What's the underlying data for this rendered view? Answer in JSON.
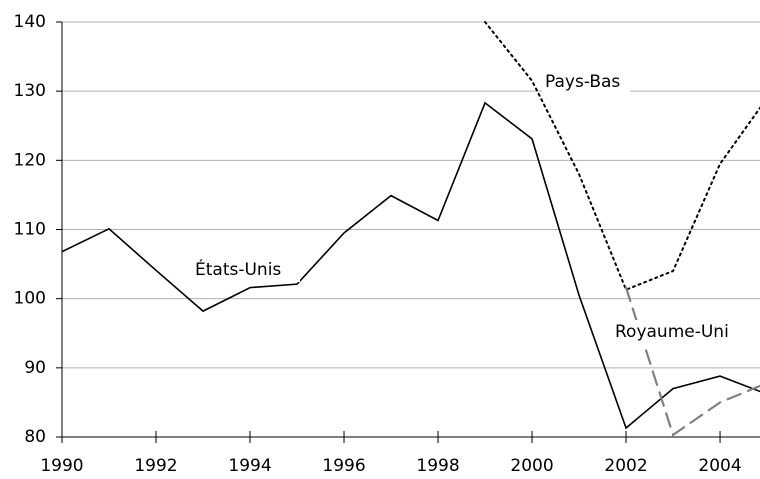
{
  "chart_data": {
    "type": "line",
    "x": [
      1990,
      1991,
      1992,
      1993,
      1994,
      1995,
      1996,
      1997,
      1998,
      1999,
      2000,
      2001,
      2002,
      2003,
      2004,
      2005
    ],
    "series": [
      {
        "name": "États-Unis",
        "color": "#000000",
        "dash": "solid",
        "values": [
          106.8,
          110.1,
          104.1,
          98.2,
          101.6,
          102.1,
          109.5,
          114.9,
          111.3,
          128.3,
          123.1,
          100.5,
          81.3,
          87.0,
          88.8,
          86.2
        ]
      },
      {
        "name": "Pays-Bas",
        "color": "#000000",
        "dash": "dotted",
        "values": [
          null,
          null,
          null,
          null,
          null,
          null,
          null,
          null,
          null,
          140,
          131.5,
          118.0,
          101.3,
          104.0,
          119.5,
          129.0
        ]
      },
      {
        "name": "Royaume-Uni",
        "color": "#808080",
        "dash": "dashed",
        "values": [
          null,
          null,
          null,
          null,
          null,
          null,
          null,
          null,
          null,
          null,
          null,
          null,
          101.6,
          80.3,
          85.0,
          87.8
        ]
      }
    ],
    "xlim": [
      1990,
      2004.85
    ],
    "xticks": [
      1990,
      1992,
      1994,
      1996,
      1998,
      2000,
      2002,
      2004
    ],
    "ylim": [
      80,
      140
    ],
    "yticks": [
      80,
      90,
      100,
      110,
      120,
      130,
      140
    ],
    "grid": true
  }
}
